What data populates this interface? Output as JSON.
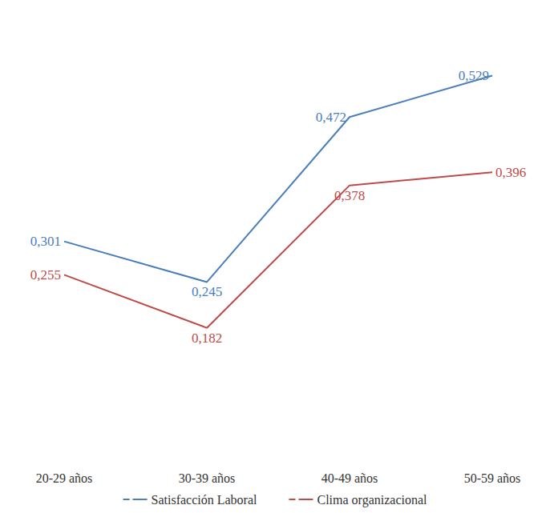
{
  "chart_data": {
    "type": "line",
    "categories": [
      "20-29 años",
      "30-39 años",
      "40-49 años",
      "50-59 años"
    ],
    "series": [
      {
        "name": "Satisfacción Laboral",
        "color": "#4a7ebb",
        "values": [
          0.301,
          0.245,
          0.472,
          0.529
        ],
        "value_labels": [
          "0,301",
          "0,245",
          "0,472",
          "0,529"
        ]
      },
      {
        "name": "Clima organizacional",
        "color": "#be4b48",
        "values": [
          0.255,
          0.182,
          0.378,
          0.396
        ],
        "value_labels": [
          "0,255",
          "0,182",
          "0,378",
          "0,396"
        ]
      }
    ],
    "ylim": [
      0,
      0.6
    ],
    "yticks": [
      0,
      0.1,
      0.2,
      0.3,
      0.4,
      0.5,
      0.6
    ],
    "grid": false,
    "legend": "bottom",
    "data_labels": true,
    "tick_labels": "x"
  }
}
